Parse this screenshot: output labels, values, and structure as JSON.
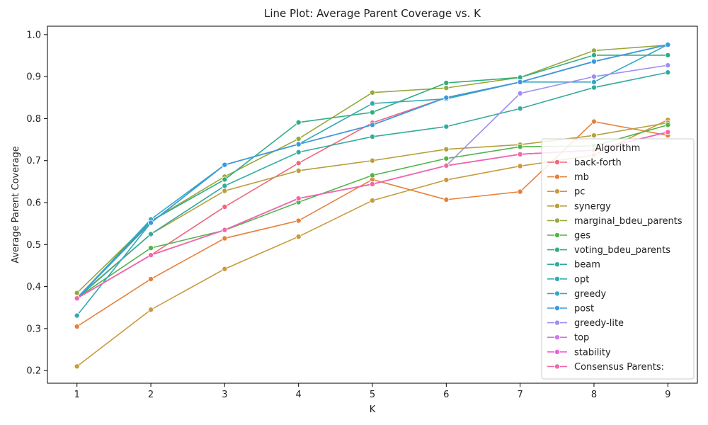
{
  "chart_data": {
    "type": "line",
    "title": "Line Plot: Average Parent Coverage vs. K",
    "xlabel": "K",
    "ylabel": "Average Parent Coverage",
    "x": [
      1,
      2,
      3,
      4,
      5,
      6,
      7,
      8,
      9
    ],
    "xlim": [
      0.6,
      9.4
    ],
    "ylim": [
      0.17,
      1.02
    ],
    "yticks": [
      0.2,
      0.3,
      0.4,
      0.5,
      0.6,
      0.7,
      0.8,
      0.9,
      1.0
    ],
    "ytick_labels": [
      "0.2",
      "0.3",
      "0.4",
      "0.5",
      "0.6",
      "0.7",
      "0.8",
      "0.9",
      "1.0"
    ],
    "xtick_labels": [
      "1",
      "2",
      "3",
      "4",
      "5",
      "6",
      "7",
      "8",
      "9"
    ],
    "grid": false,
    "legend_title": "Algorithm",
    "legend_position": "center-right",
    "series": [
      {
        "name": "back-forth",
        "color": "#f0677b",
        "values": [
          0.372,
          0.475,
          0.59,
          0.694,
          0.79,
          0.85,
          0.887,
          0.936,
          0.976
        ]
      },
      {
        "name": "mb",
        "color": "#e5813c",
        "values": [
          0.305,
          0.418,
          0.515,
          0.557,
          0.655,
          0.607,
          0.626,
          0.793,
          0.76
        ]
      },
      {
        "name": "pc",
        "color": "#c99a3e",
        "values": [
          0.21,
          0.345,
          0.442,
          0.519,
          0.605,
          0.654,
          0.687,
          0.713,
          0.797
        ]
      },
      {
        "name": "synergy",
        "color": "#b7a03d",
        "values": [
          0.374,
          0.525,
          0.628,
          0.676,
          0.7,
          0.727,
          0.738,
          0.76,
          0.79
        ]
      },
      {
        "name": "marginal_bdeu_parents",
        "color": "#97a83c",
        "values": [
          0.385,
          0.556,
          0.662,
          0.752,
          0.862,
          0.873,
          0.898,
          0.962,
          0.975
        ]
      },
      {
        "name": "ges",
        "color": "#52b44b",
        "values": [
          0.373,
          0.492,
          0.534,
          0.601,
          0.665,
          0.705,
          0.733,
          0.735,
          0.785
        ]
      },
      {
        "name": "voting_bdeu_parents",
        "color": "#32ad82",
        "values": [
          0.373,
          0.556,
          0.655,
          0.791,
          0.815,
          0.885,
          0.898,
          0.951,
          0.951
        ]
      },
      {
        "name": "beam",
        "color": "#34ab9c",
        "values": [
          0.372,
          0.525,
          0.64,
          0.72,
          0.757,
          0.781,
          0.824,
          0.874,
          0.91
        ]
      },
      {
        "name": "opt",
        "color": "#35a9b3",
        "values": [
          0.331,
          0.552,
          0.69,
          0.739,
          0.836,
          0.847,
          0.887,
          0.936,
          0.976
        ]
      },
      {
        "name": "greedy",
        "color": "#37a6c7",
        "values": [
          0.372,
          0.56,
          0.69,
          0.739,
          0.785,
          0.85,
          0.887,
          0.887,
          0.976
        ]
      },
      {
        "name": "post",
        "color": "#3c98e0",
        "values": [
          0.372,
          0.552,
          0.69,
          0.739,
          0.785,
          0.85,
          0.887,
          0.936,
          0.976
        ]
      },
      {
        "name": "greedy-lite",
        "color": "#9f8ef0",
        "values": [
          0.372,
          0.475,
          0.535,
          0.61,
          0.644,
          0.688,
          0.86,
          0.9,
          0.927
        ]
      },
      {
        "name": "top",
        "color": "#cc78ee",
        "values": [
          0.372,
          0.475,
          0.535,
          0.61,
          0.644,
          0.688,
          0.715,
          0.725,
          0.768
        ]
      },
      {
        "name": "stability",
        "color": "#ec62d8",
        "values": [
          0.372,
          0.475,
          0.535,
          0.61,
          0.644,
          0.688,
          0.715,
          0.725,
          0.768
        ]
      },
      {
        "name": "Consensus Parents:",
        "color": "#f167a8",
        "values": [
          0.372,
          0.475,
          0.535,
          0.61,
          0.644,
          0.688,
          0.715,
          0.725,
          0.768
        ]
      }
    ]
  }
}
